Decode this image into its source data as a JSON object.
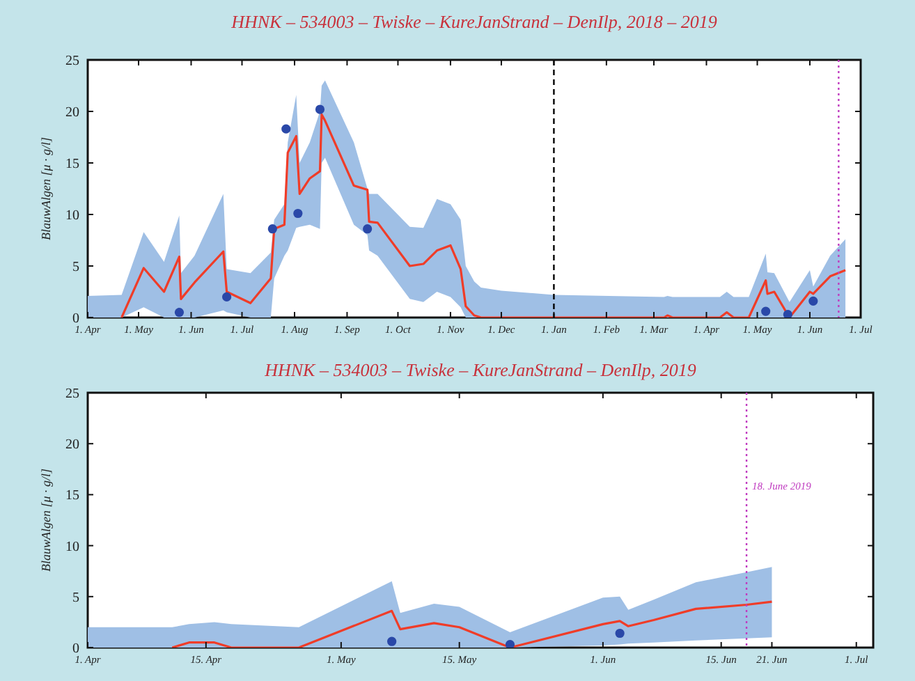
{
  "chart_data": [
    {
      "type": "line",
      "title": "HHNK – 534003 – Twiske – KureJanStrand – DenIlp,  2018 – 2019",
      "ylabel": "BlauwAlgen  [μ · g/l]",
      "xlim": [
        "2018-04-01",
        "2019-07-01"
      ],
      "ylim": [
        0,
        25
      ],
      "yticks": [
        0,
        5,
        10,
        15,
        20,
        25
      ],
      "tick_labels": "xy",
      "xticks": [
        {
          "value": "2018-04-01",
          "label": "1. Apr"
        },
        {
          "value": "2018-05-01",
          "label": "1. May"
        },
        {
          "value": "2018-06-01",
          "label": "1. Jun"
        },
        {
          "value": "2018-07-01",
          "label": "1. Jul"
        },
        {
          "value": "2018-08-01",
          "label": "1. Aug"
        },
        {
          "value": "2018-09-01",
          "label": "1. Sep"
        },
        {
          "value": "2018-10-01",
          "label": "1. Oct"
        },
        {
          "value": "2018-11-01",
          "label": "1. Nov"
        },
        {
          "value": "2018-12-01",
          "label": "1. Dec"
        },
        {
          "value": "2019-01-01",
          "label": "1. Jan"
        },
        {
          "value": "2019-02-01",
          "label": "1. Feb"
        },
        {
          "value": "2019-03-01",
          "label": "1. Mar"
        },
        {
          "value": "2019-04-01",
          "label": "1. Apr"
        },
        {
          "value": "2019-05-01",
          "label": "1. May"
        },
        {
          "value": "2019-06-01",
          "label": "1. Jun"
        },
        {
          "value": "2019-07-01",
          "label": "1. Jul"
        }
      ],
      "ref_lines": [
        {
          "axis": "x",
          "value": "2019-01-01",
          "color": "#000000",
          "line_style": "dashed"
        },
        {
          "axis": "x",
          "value": "2019-06-18",
          "color": "#c03cc0",
          "line_style": "dotted"
        }
      ],
      "series": [
        {
          "type": "line",
          "color": "#f03c28",
          "x": [
            "2018-04-01",
            "2018-04-21",
            "2018-05-04",
            "2018-05-16",
            "2018-05-25",
            "2018-05-26",
            "2018-06-03",
            "2018-06-20",
            "2018-06-22",
            "2018-07-06",
            "2018-07-18",
            "2018-07-20",
            "2018-07-26",
            "2018-07-28",
            "2018-08-02",
            "2018-08-04",
            "2018-08-10",
            "2018-08-16",
            "2018-08-17",
            "2018-08-19",
            "2018-09-05",
            "2018-09-13",
            "2018-09-14",
            "2018-09-19",
            "2018-10-08",
            "2018-10-16",
            "2018-10-24",
            "2018-11-01",
            "2018-11-07",
            "2018-11-10",
            "2018-11-15",
            "2018-11-19",
            "2018-12-01",
            "2019-01-01",
            "2019-03-07",
            "2019-03-09",
            "2019-03-12",
            "2019-04-09",
            "2019-04-13",
            "2019-04-17",
            "2019-04-26",
            "2019-05-06",
            "2019-05-07",
            "2019-05-11",
            "2019-05-20",
            "2019-06-01",
            "2019-06-03",
            "2019-06-13",
            "2019-06-22"
          ],
          "values": [
            null,
            0,
            4.8,
            2.5,
            5.9,
            1.8,
            3.4,
            6.4,
            2.5,
            1.4,
            3.8,
            8.6,
            9,
            16,
            17.6,
            12,
            13.5,
            14.2,
            19.7,
            19.1,
            12.8,
            12.4,
            9.3,
            9.2,
            5,
            5.2,
            6.5,
            7,
            4.7,
            1.1,
            0.2,
            0,
            0,
            0,
            0,
            0.2,
            0,
            0,
            0.5,
            0,
            0,
            3.6,
            2.3,
            2.5,
            0,
            2.5,
            2.3,
            4,
            4.6
          ],
          "lower": [
            0,
            0,
            1,
            0,
            0,
            0,
            0,
            0.7,
            0.5,
            0,
            0,
            3.8,
            6,
            6.5,
            8.7,
            8.8,
            9,
            8.6,
            15,
            15.5,
            9,
            8,
            6.5,
            6,
            1.8,
            1.5,
            2.5,
            2,
            1,
            0,
            0,
            0,
            0,
            0,
            0,
            0,
            0,
            0,
            0,
            0,
            0,
            0,
            0,
            0,
            0,
            0,
            0,
            0,
            0
          ],
          "upper": [
            2.1,
            2.2,
            8.3,
            5.4,
            9.9,
            4.3,
            6,
            12,
            4.7,
            4.3,
            6.3,
            9.5,
            11,
            17,
            21.6,
            15,
            17,
            20,
            22.5,
            23,
            17,
            12.5,
            12,
            12,
            8.8,
            8.7,
            11.5,
            11,
            9.5,
            5,
            3.5,
            2.9,
            2.6,
            2.2,
            2,
            2.1,
            2,
            2,
            2.5,
            2,
            2,
            6.2,
            4.4,
            4.3,
            1.5,
            4.6,
            3,
            6,
            7.6
          ]
        },
        {
          "type": "scatter",
          "color": "#2a48a8",
          "marker": "circle",
          "x": [
            "2018-05-25",
            "2018-06-22",
            "2018-07-19",
            "2018-07-27",
            "2018-08-03",
            "2018-08-16",
            "2018-09-13",
            "2019-05-06",
            "2019-05-19",
            "2019-06-03"
          ],
          "values": [
            0.5,
            2,
            8.6,
            18.3,
            10.1,
            20.2,
            8.6,
            0.6,
            0.3,
            1.6
          ]
        }
      ]
    },
    {
      "type": "line",
      "title": "HHNK – 534003 – Twiske – KureJanStrand – DenIlp,  2019",
      "ylabel": "BlauwAlgen  [μ · g/l]",
      "xlim": [
        "2019-04-01",
        "2019-07-03"
      ],
      "ylim": [
        0,
        25
      ],
      "yticks": [
        0,
        5,
        10,
        15,
        20,
        25
      ],
      "tick_labels": "xy",
      "xticks": [
        {
          "value": "2019-04-01",
          "label": "1. Apr"
        },
        {
          "value": "2019-04-15",
          "label": "15. Apr"
        },
        {
          "value": "2019-05-01",
          "label": "1. May"
        },
        {
          "value": "2019-05-15",
          "label": "15. May"
        },
        {
          "value": "2019-06-01",
          "label": "1. Jun"
        },
        {
          "value": "2019-06-15",
          "label": "15. Jun"
        },
        {
          "value": "2019-06-21",
          "label": "21. Jun"
        },
        {
          "value": "2019-07-01",
          "label": "1. Jul"
        }
      ],
      "ref_lines": [
        {
          "axis": "x",
          "value": "2019-06-18",
          "label": "18. June 2019",
          "color": "#c03cc0",
          "line_style": "dotted"
        }
      ],
      "series": [
        {
          "type": "line",
          "color": "#f03c28",
          "x": [
            "2019-04-01",
            "2019-04-11",
            "2019-04-13",
            "2019-04-16",
            "2019-04-18",
            "2019-04-26",
            "2019-05-07",
            "2019-05-08",
            "2019-05-12",
            "2019-05-15",
            "2019-05-21",
            "2019-06-01",
            "2019-06-03",
            "2019-06-04",
            "2019-06-07",
            "2019-06-12",
            "2019-06-18",
            "2019-06-21"
          ],
          "values": [
            null,
            0,
            0.5,
            0.5,
            0,
            0,
            3.6,
            1.8,
            2.4,
            2,
            0,
            2.3,
            2.6,
            2.1,
            2.7,
            3.8,
            4.2,
            4.5
          ],
          "lower": [
            0,
            0,
            0,
            0,
            0,
            0,
            0,
            0,
            0,
            0,
            0,
            0.2,
            0.3,
            0.4,
            0.5,
            0.7,
            0.9,
            1
          ],
          "upper": [
            2,
            2,
            2.3,
            2.5,
            2.3,
            2,
            6.5,
            3.4,
            4.3,
            4,
            1.5,
            4.9,
            5,
            3.7,
            4.7,
            6.4,
            7.4,
            7.9
          ]
        },
        {
          "type": "scatter",
          "color": "#2a48a8",
          "marker": "circle",
          "x": [
            "2019-05-07",
            "2019-05-21",
            "2019-06-03"
          ],
          "values": [
            0.6,
            0.3,
            1.4
          ]
        }
      ]
    }
  ]
}
